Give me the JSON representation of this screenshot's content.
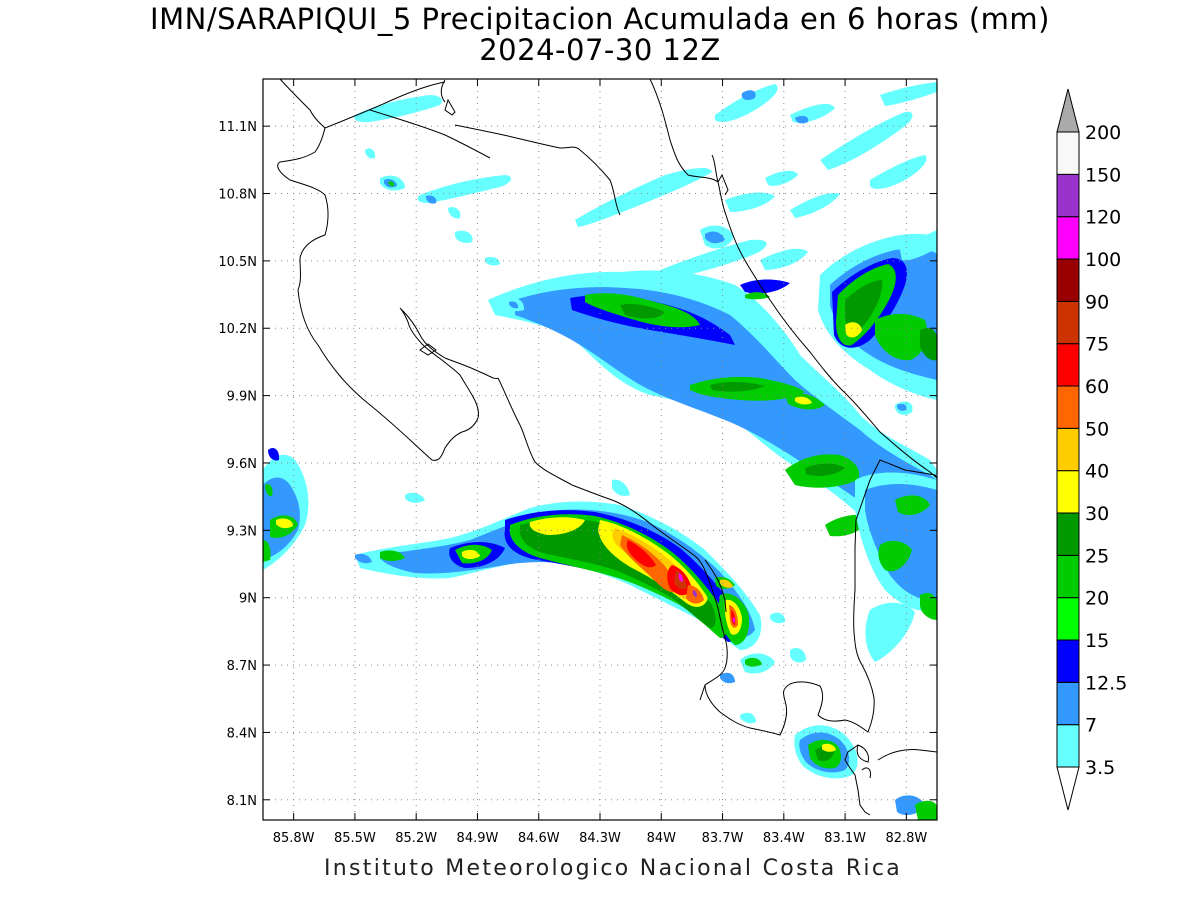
{
  "title": "IMN/SARAPIQUI_5 Precipitacion Acumulada en 6 horas (mm)",
  "subtitle": "2024-07-30 12Z",
  "footer": "Instituto Meteorologico Nacional Costa Rica",
  "map": {
    "lon_range": [
      -85.95,
      -82.65
    ],
    "lat_range": [
      8.01,
      11.31
    ],
    "lat_ticks": [
      {
        "value": 11.1,
        "label": "11.1N"
      },
      {
        "value": 10.8,
        "label": "10.8N"
      },
      {
        "value": 10.5,
        "label": "10.5N"
      },
      {
        "value": 10.2,
        "label": "10.2N"
      },
      {
        "value": 9.9,
        "label": "9.9N"
      },
      {
        "value": 9.6,
        "label": "9.6N"
      },
      {
        "value": 9.3,
        "label": "9.3N"
      },
      {
        "value": 9.0,
        "label": "9N"
      },
      {
        "value": 8.7,
        "label": "8.7N"
      },
      {
        "value": 8.4,
        "label": "8.4N"
      },
      {
        "value": 8.1,
        "label": "8.1N"
      }
    ],
    "lon_ticks": [
      {
        "value": -85.8,
        "label": "85.8W"
      },
      {
        "value": -85.5,
        "label": "85.5W"
      },
      {
        "value": -85.2,
        "label": "85.2W"
      },
      {
        "value": -84.9,
        "label": "84.9W"
      },
      {
        "value": -84.6,
        "label": "84.6W"
      },
      {
        "value": -84.3,
        "label": "84.3W"
      },
      {
        "value": -84.0,
        "label": "84W"
      },
      {
        "value": -83.7,
        "label": "83.7W"
      },
      {
        "value": -83.4,
        "label": "83.4W"
      },
      {
        "value": -83.1,
        "label": "83.1W"
      },
      {
        "value": -82.8,
        "label": "82.8W"
      }
    ],
    "grid": "dotted"
  },
  "colorbar": {
    "labels": [
      "3.5",
      "7",
      "12.5",
      "15",
      "20",
      "25",
      "30",
      "40",
      "50",
      "60",
      "75",
      "90",
      "100",
      "120",
      "150",
      "200"
    ],
    "colors": [
      "#66ffff",
      "#3399ff",
      "#0000ff",
      "#00ff00",
      "#00cc00",
      "#009900",
      "#ffff00",
      "#ffcc00",
      "#ff6600",
      "#ff0000",
      "#cc3300",
      "#990000",
      "#ff00ff",
      "#9933cc",
      "#f8f8f8"
    ],
    "over_color": "#aaaaaa",
    "under_color": "#ffffff"
  }
}
